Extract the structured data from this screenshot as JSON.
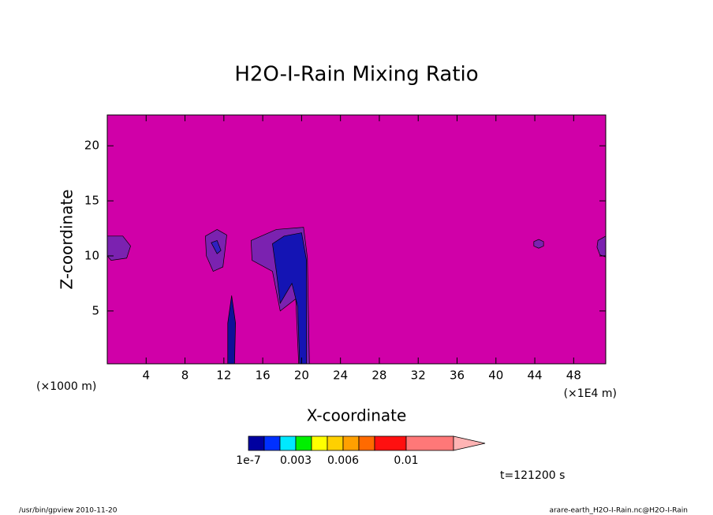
{
  "chart_data": {
    "type": "contour",
    "title": "H2O-I-Rain Mixing Ratio",
    "x_label": "X-coordinate",
    "y_label": "Z-coordinate",
    "x_unit_left": "(×1000 m)",
    "x_unit_right": "(×1E4 m)",
    "xlim": [
      0,
      51.3
    ],
    "ylim": [
      0.2,
      22.8
    ],
    "xticks": [
      4,
      8,
      12,
      16,
      20,
      24,
      28,
      32,
      36,
      40,
      44,
      48
    ],
    "yticks": [
      5,
      10,
      15,
      20
    ],
    "background_color": "#d000a8",
    "regions": [
      {
        "color": "#7b22b0",
        "x": [
          0,
          1.6,
          2.4,
          2.0,
          0.4,
          0
        ],
        "y": [
          11.8,
          11.8,
          10.9,
          9.8,
          9.6,
          10.0
        ]
      },
      {
        "color": "#7b22b0",
        "x": [
          10.1,
          11.3,
          12.3,
          12.1,
          11.9,
          10.9,
          10.2
        ],
        "y": [
          11.8,
          12.4,
          11.9,
          10.4,
          9.0,
          8.6,
          10.0
        ]
      },
      {
        "color": "#3020c0",
        "x": [
          10.7,
          11.3,
          11.7,
          11.3
        ],
        "y": [
          11.2,
          11.4,
          10.5,
          10.2
        ]
      },
      {
        "color": "#101098",
        "x": [
          12.8,
          13.2,
          13.1,
          12.4,
          12.4
        ],
        "y": [
          6.4,
          3.9,
          0.2,
          0.2,
          3.9
        ]
      },
      {
        "color": "#7b22b0",
        "x": [
          14.8,
          17.4,
          20.2,
          20.6,
          20.8,
          19.7,
          19.4,
          17.8,
          17.0,
          14.9
        ],
        "y": [
          11.4,
          12.4,
          12.6,
          9.8,
          0.2,
          0.2,
          6.1,
          5.0,
          8.6,
          9.6
        ]
      },
      {
        "color": "#1414b4",
        "x": [
          17.0,
          18.2,
          20.0,
          20.5,
          20.5,
          19.8,
          19.6,
          19.0,
          17.8,
          17.4
        ],
        "y": [
          11.1,
          11.8,
          12.1,
          9.6,
          0.2,
          0.2,
          5.4,
          7.5,
          5.7,
          8.6
        ]
      },
      {
        "color": "#7b22b0",
        "x": [
          43.9,
          44.4,
          44.9,
          44.9,
          44.4,
          43.9
        ],
        "y": [
          11.3,
          11.5,
          11.3,
          10.9,
          10.7,
          10.9
        ]
      },
      {
        "color": "#7b22b0",
        "x": [
          51.3,
          50.5,
          50.4,
          50.7,
          51.3
        ],
        "y": [
          11.8,
          11.4,
          10.8,
          10.1,
          9.9
        ]
      }
    ],
    "colorbar": {
      "levels": [
        1e-07,
        0.001,
        0.002,
        0.003,
        0.004,
        0.005,
        0.006,
        0.007,
        0.008,
        0.01,
        0.013
      ],
      "colors": [
        "#0000a0",
        "#0030ff",
        "#00e8ff",
        "#00f000",
        "#ffff00",
        "#ffd000",
        "#ffa000",
        "#ff6a00",
        "#ff1010",
        "#ff7878"
      ],
      "extend_color": "#ffb4b4",
      "ticks": [
        {
          "value": 1e-07,
          "label": "1e-7"
        },
        0.003,
        0.006,
        0.01
      ]
    },
    "time_label": "t=121200 s",
    "footer_left": "/usr/bin/gpview  2010-11-20",
    "footer_right": "arare-earth_H2O-I-Rain.nc@H2O-I-Rain"
  }
}
